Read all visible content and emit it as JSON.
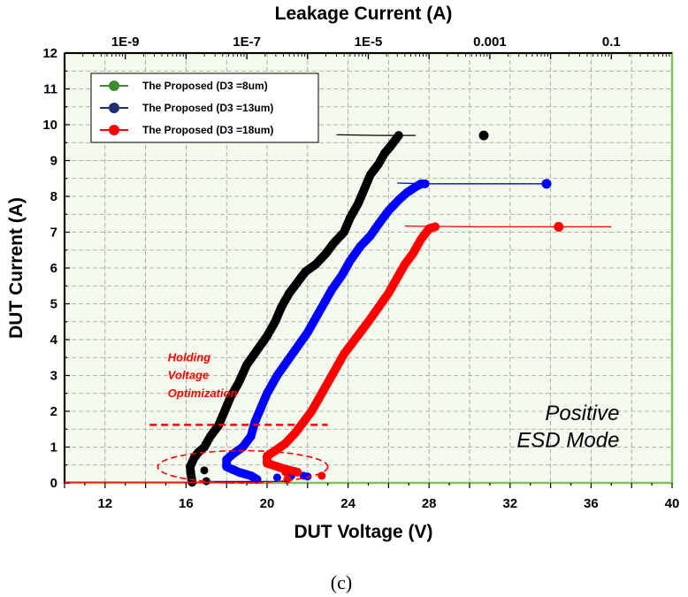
{
  "colors": {
    "plot_background": "#f4faee",
    "grid": "#9a9a9a",
    "frame": "#7bc35a",
    "black_series": "#000000",
    "blue_series": "#0000ff",
    "red_series": "#ff0000",
    "legend_green": "#3d8b2f",
    "legend_navy": "#1f2f6e"
  },
  "chart_data": {
    "type": "scatter",
    "title": "",
    "xlabel": "DUT Voltage (V)",
    "ylabel": "DUT Current (A)",
    "x2label": "Leakage Current (A)",
    "xlim": [
      10,
      40
    ],
    "ylim": [
      0,
      12
    ],
    "x2lim": [
      1e-10,
      1
    ],
    "x2_scale": "log",
    "grid": true,
    "legend_position": "top-left",
    "x_ticks": [
      {
        "value": 12,
        "label": "12"
      },
      {
        "value": 16,
        "label": "16"
      },
      {
        "value": 20,
        "label": "20"
      },
      {
        "value": 24,
        "label": "24"
      },
      {
        "value": 28,
        "label": "28"
      },
      {
        "value": 32,
        "label": "32"
      },
      {
        "value": 36,
        "label": "36"
      },
      {
        "value": 40,
        "label": "40"
      }
    ],
    "y_ticks": [
      {
        "value": 0,
        "label": "0"
      },
      {
        "value": 1,
        "label": "1"
      },
      {
        "value": 2,
        "label": "2"
      },
      {
        "value": 3,
        "label": "3"
      },
      {
        "value": 4,
        "label": "4"
      },
      {
        "value": 5,
        "label": "5"
      },
      {
        "value": 6,
        "label": "6"
      },
      {
        "value": 7,
        "label": "7"
      },
      {
        "value": 8,
        "label": "8"
      },
      {
        "value": 9,
        "label": "9"
      },
      {
        "value": 10,
        "label": "10"
      },
      {
        "value": 11,
        "label": "11"
      },
      {
        "value": 12,
        "label": "12"
      }
    ],
    "x2_ticks": [
      {
        "value": 1e-09,
        "label": "1E-9"
      },
      {
        "value": 1e-07,
        "label": "1E-7"
      },
      {
        "value": 1e-05,
        "label": "1E-5"
      },
      {
        "value": 0.001,
        "label": "0.001"
      },
      {
        "value": 0.1,
        "label": "0.1"
      }
    ],
    "legend": [
      {
        "label": "The Proposed (D3 =8um)",
        "color": "#3d8b2f"
      },
      {
        "label": "The Proposed (D3 =13um)",
        "color": "#1f2f6e"
      },
      {
        "label": "The Proposed (D3 =18um)",
        "color": "#ff0000"
      }
    ],
    "series": [
      {
        "color": "#000000",
        "tlp": [
          [
            16.3,
            0.02
          ],
          [
            16.25,
            0.2
          ],
          [
            16.2,
            0.45
          ],
          [
            16.4,
            0.7
          ],
          [
            16.6,
            0.85
          ],
          [
            16.9,
            1.0
          ],
          [
            17.2,
            1.3
          ],
          [
            17.6,
            1.6
          ],
          [
            17.9,
            2.0
          ],
          [
            18.2,
            2.4
          ],
          [
            18.6,
            2.8
          ],
          [
            19.0,
            3.3
          ],
          [
            19.5,
            3.7
          ],
          [
            20.0,
            4.1
          ],
          [
            20.4,
            4.5
          ],
          [
            20.7,
            4.9
          ],
          [
            21.1,
            5.3
          ],
          [
            21.5,
            5.6
          ],
          [
            21.9,
            5.9
          ],
          [
            22.4,
            6.1
          ],
          [
            22.9,
            6.4
          ],
          [
            23.3,
            6.7
          ],
          [
            23.8,
            7.0
          ],
          [
            24.1,
            7.4
          ],
          [
            24.5,
            7.8
          ],
          [
            24.8,
            8.2
          ],
          [
            25.1,
            8.6
          ],
          [
            25.5,
            8.9
          ],
          [
            25.8,
            9.2
          ],
          [
            26.1,
            9.4
          ],
          [
            26.3,
            9.55
          ],
          [
            26.5,
            9.7
          ]
        ],
        "low": [
          [
            16.9,
            0.35
          ],
          [
            17.0,
            0.05
          ]
        ],
        "leakage": [
          [
            6e-05,
            9.7
          ],
          [
            1.5e-05,
            9.7
          ],
          [
            3e-06,
            9.72
          ]
        ],
        "end_marker": [
          30.7,
          9.7
        ]
      },
      {
        "color": "#0000ff",
        "tlp": [
          [
            19.5,
            0.1
          ],
          [
            19.2,
            0.2
          ],
          [
            18.6,
            0.3
          ],
          [
            18.0,
            0.45
          ],
          [
            18.0,
            0.65
          ],
          [
            18.3,
            0.8
          ],
          [
            18.8,
            1.0
          ],
          [
            19.2,
            1.3
          ],
          [
            19.4,
            1.7
          ],
          [
            19.7,
            2.1
          ],
          [
            20.0,
            2.5
          ],
          [
            20.5,
            3.0
          ],
          [
            21.0,
            3.4
          ],
          [
            21.5,
            3.8
          ],
          [
            22.0,
            4.2
          ],
          [
            22.4,
            4.6
          ],
          [
            22.8,
            5.0
          ],
          [
            23.2,
            5.4
          ],
          [
            23.7,
            5.8
          ],
          [
            24.1,
            6.2
          ],
          [
            24.6,
            6.6
          ],
          [
            25.1,
            6.9
          ],
          [
            25.6,
            7.3
          ],
          [
            26.0,
            7.6
          ],
          [
            26.5,
            7.9
          ],
          [
            26.9,
            8.1
          ],
          [
            27.3,
            8.25
          ],
          [
            27.6,
            8.35
          ],
          [
            27.8,
            8.35
          ]
        ],
        "low": [
          [
            20.5,
            0.15
          ],
          [
            21.2,
            0.2
          ],
          [
            21.8,
            0.2
          ],
          [
            22.0,
            0.18
          ]
        ],
        "leakage": [
          [
            0.01,
            8.35
          ],
          [
            0.0008,
            8.35
          ],
          [
            0.0001,
            8.35
          ],
          [
            3e-05,
            8.37
          ]
        ],
        "end_marker": [
          33.8,
          8.35
        ]
      },
      {
        "color": "#ff0000",
        "tlp": [
          [
            21.5,
            0.3
          ],
          [
            20.8,
            0.4
          ],
          [
            20.0,
            0.55
          ],
          [
            20.0,
            0.75
          ],
          [
            20.4,
            0.9
          ],
          [
            20.9,
            1.1
          ],
          [
            21.4,
            1.4
          ],
          [
            21.8,
            1.7
          ],
          [
            22.2,
            2.0
          ],
          [
            22.6,
            2.4
          ],
          [
            23.0,
            2.8
          ],
          [
            23.4,
            3.2
          ],
          [
            23.8,
            3.6
          ],
          [
            24.2,
            3.9
          ],
          [
            24.6,
            4.2
          ],
          [
            25.0,
            4.5
          ],
          [
            25.5,
            4.9
          ],
          [
            26.0,
            5.3
          ],
          [
            26.4,
            5.7
          ],
          [
            26.8,
            6.1
          ],
          [
            27.2,
            6.4
          ],
          [
            27.6,
            6.8
          ],
          [
            28.0,
            7.1
          ],
          [
            28.3,
            7.15
          ]
        ],
        "low": [
          [
            20.9,
            0.3
          ],
          [
            21.0,
            0.1
          ],
          [
            22.7,
            0.2
          ]
        ],
        "leakage": [
          [
            0.1,
            7.15
          ],
          [
            0.01,
            7.15
          ],
          [
            0.0006,
            7.15
          ],
          [
            4e-05,
            7.17
          ]
        ],
        "end_marker": [
          34.4,
          7.15
        ]
      }
    ],
    "annotations": [
      {
        "text": "Holding",
        "x": 15.1,
        "y": 3.4
      },
      {
        "text": "Voltage",
        "x": 15.1,
        "y": 2.9
      },
      {
        "text": "Optimization",
        "x": 15.1,
        "y": 2.4
      },
      {
        "text": "Positive",
        "x": 37.4,
        "y": 1.75
      },
      {
        "text": "ESD Mode",
        "x": 37.4,
        "y": 1.0
      }
    ],
    "dashed_line": {
      "x": [
        14.2,
        23.0
      ],
      "y": 1.62
    },
    "dashed_ellipse": {
      "cx": 18.8,
      "cy": 0.45,
      "rx": 4.2,
      "ry": 0.45
    },
    "caption": "(c)"
  }
}
